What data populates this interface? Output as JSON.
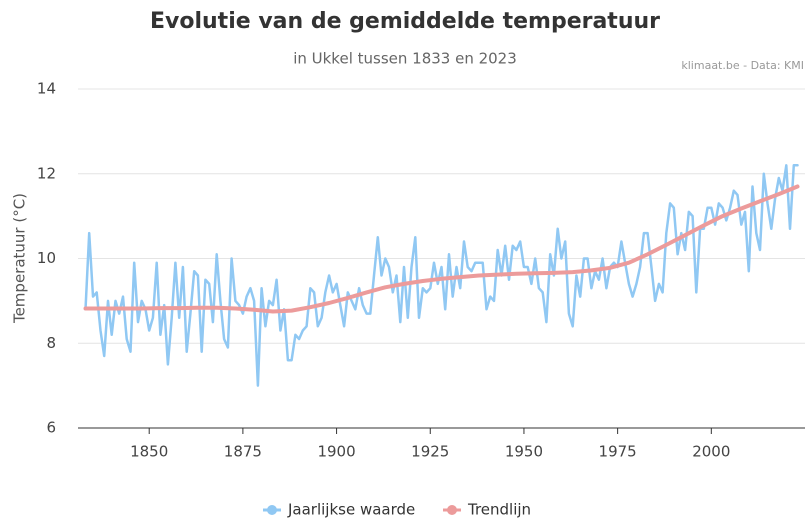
{
  "chart_data": {
    "type": "line",
    "title": "Evolutie van de gemiddelde temperatuur",
    "subtitle": "in Ukkel tussen 1833 en 2023",
    "source": "klimaat.be - Data: KMI",
    "y_label": "Temperatuur (°C)",
    "xlim": [
      1831,
      2025
    ],
    "xticks": [
      1850,
      1875,
      1900,
      1925,
      1950,
      1975,
      2000
    ],
    "ylim": [
      6,
      14
    ],
    "yticks": [
      6,
      8,
      10,
      12,
      14
    ],
    "grid": true,
    "legend": "bottom",
    "series": [
      {
        "name": "Jaarlijkse waarde",
        "color": "#90c8f3",
        "x": [
          1833,
          1834,
          1835,
          1836,
          1837,
          1838,
          1839,
          1840,
          1841,
          1842,
          1843,
          1844,
          1845,
          1846,
          1847,
          1848,
          1849,
          1850,
          1851,
          1852,
          1853,
          1854,
          1855,
          1856,
          1857,
          1858,
          1859,
          1860,
          1861,
          1862,
          1863,
          1864,
          1865,
          1866,
          1867,
          1868,
          1869,
          1870,
          1871,
          1872,
          1873,
          1874,
          1875,
          1876,
          1877,
          1878,
          1879,
          1880,
          1881,
          1882,
          1883,
          1884,
          1885,
          1886,
          1887,
          1888,
          1889,
          1890,
          1891,
          1892,
          1893,
          1894,
          1895,
          1896,
          1897,
          1898,
          1899,
          1900,
          1901,
          1902,
          1903,
          1904,
          1905,
          1906,
          1907,
          1908,
          1909,
          1910,
          1911,
          1912,
          1913,
          1914,
          1915,
          1916,
          1917,
          1918,
          1919,
          1920,
          1921,
          1922,
          1923,
          1924,
          1925,
          1926,
          1927,
          1928,
          1929,
          1930,
          1931,
          1932,
          1933,
          1934,
          1935,
          1936,
          1937,
          1938,
          1939,
          1940,
          1941,
          1942,
          1943,
          1944,
          1945,
          1946,
          1947,
          1948,
          1949,
          1950,
          1951,
          1952,
          1953,
          1954,
          1955,
          1956,
          1957,
          1958,
          1959,
          1960,
          1961,
          1962,
          1963,
          1964,
          1965,
          1966,
          1967,
          1968,
          1969,
          1970,
          1971,
          1972,
          1973,
          1974,
          1975,
          1976,
          1977,
          1978,
          1979,
          1980,
          1981,
          1982,
          1983,
          1984,
          1985,
          1986,
          1987,
          1988,
          1989,
          1990,
          1991,
          1992,
          1993,
          1994,
          1995,
          1996,
          1997,
          1998,
          1999,
          2000,
          2001,
          2002,
          2003,
          2004,
          2005,
          2006,
          2007,
          2008,
          2009,
          2010,
          2011,
          2012,
          2013,
          2014,
          2015,
          2016,
          2017,
          2018,
          2019,
          2020,
          2021,
          2022,
          2023
        ],
        "values": [
          8.8,
          10.6,
          9.1,
          9.2,
          8.3,
          7.7,
          9.0,
          8.2,
          9.0,
          8.7,
          9.1,
          8.1,
          7.8,
          9.9,
          8.5,
          9.0,
          8.8,
          8.3,
          8.6,
          9.9,
          8.2,
          8.9,
          7.5,
          8.6,
          9.9,
          8.6,
          9.8,
          7.8,
          8.7,
          9.7,
          9.6,
          7.8,
          9.5,
          9.4,
          8.5,
          10.1,
          9.0,
          8.1,
          7.9,
          10.0,
          9.0,
          8.9,
          8.7,
          9.1,
          9.3,
          9.0,
          7.0,
          9.3,
          8.4,
          9.0,
          8.9,
          9.5,
          8.3,
          8.8,
          7.6,
          7.6,
          8.2,
          8.1,
          8.3,
          8.4,
          9.3,
          9.2,
          8.4,
          8.6,
          9.2,
          9.6,
          9.2,
          9.4,
          8.9,
          8.4,
          9.2,
          9.0,
          8.8,
          9.3,
          8.9,
          8.7,
          8.7,
          9.6,
          10.5,
          9.6,
          10.0,
          9.8,
          9.2,
          9.6,
          8.5,
          9.8,
          8.6,
          9.8,
          10.5,
          8.6,
          9.3,
          9.2,
          9.3,
          9.9,
          9.4,
          9.8,
          8.8,
          10.1,
          9.1,
          9.8,
          9.3,
          10.4,
          9.8,
          9.7,
          9.9,
          9.9,
          9.9,
          8.8,
          9.1,
          9.0,
          10.2,
          9.6,
          10.3,
          9.5,
          10.3,
          10.2,
          10.4,
          9.8,
          9.8,
          9.4,
          10.0,
          9.3,
          9.2,
          8.5,
          10.1,
          9.6,
          10.7,
          10.0,
          10.4,
          8.7,
          8.4,
          9.6,
          9.1,
          10.0,
          10.0,
          9.3,
          9.7,
          9.5,
          10.0,
          9.3,
          9.8,
          9.9,
          9.8,
          10.4,
          9.9,
          9.4,
          9.1,
          9.4,
          9.8,
          10.6,
          10.6,
          9.8,
          9.0,
          9.4,
          9.2,
          10.6,
          11.3,
          11.2,
          10.1,
          10.6,
          10.2,
          11.1,
          11.0,
          9.2,
          10.7,
          10.7,
          11.2,
          11.2,
          10.8,
          11.3,
          11.2,
          10.9,
          11.2,
          11.6,
          11.5,
          10.8,
          11.1,
          9.7,
          11.7,
          10.6,
          10.2,
          12.0,
          11.3,
          10.7,
          11.4,
          11.9,
          11.6,
          12.2,
          10.7,
          12.2,
          12.2
        ]
      },
      {
        "name": "Trendlijn",
        "color": "#ec9b9b",
        "x": [
          1833,
          1838,
          1843,
          1848,
          1853,
          1858,
          1863,
          1868,
          1873,
          1878,
          1883,
          1888,
          1893,
          1898,
          1903,
          1908,
          1913,
          1918,
          1923,
          1928,
          1933,
          1938,
          1943,
          1948,
          1953,
          1958,
          1963,
          1968,
          1973,
          1978,
          1983,
          1988,
          1993,
          1998,
          2003,
          2008,
          2013,
          2018,
          2023
        ],
        "values": [
          8.82,
          8.82,
          8.82,
          8.82,
          8.83,
          8.83,
          8.84,
          8.84,
          8.82,
          8.79,
          8.75,
          8.77,
          8.85,
          8.95,
          9.07,
          9.2,
          9.32,
          9.4,
          9.47,
          9.52,
          9.56,
          9.6,
          9.62,
          9.64,
          9.65,
          9.66,
          9.68,
          9.72,
          9.78,
          9.9,
          10.1,
          10.32,
          10.55,
          10.78,
          11.0,
          11.18,
          11.35,
          11.52,
          11.7
        ]
      }
    ]
  }
}
